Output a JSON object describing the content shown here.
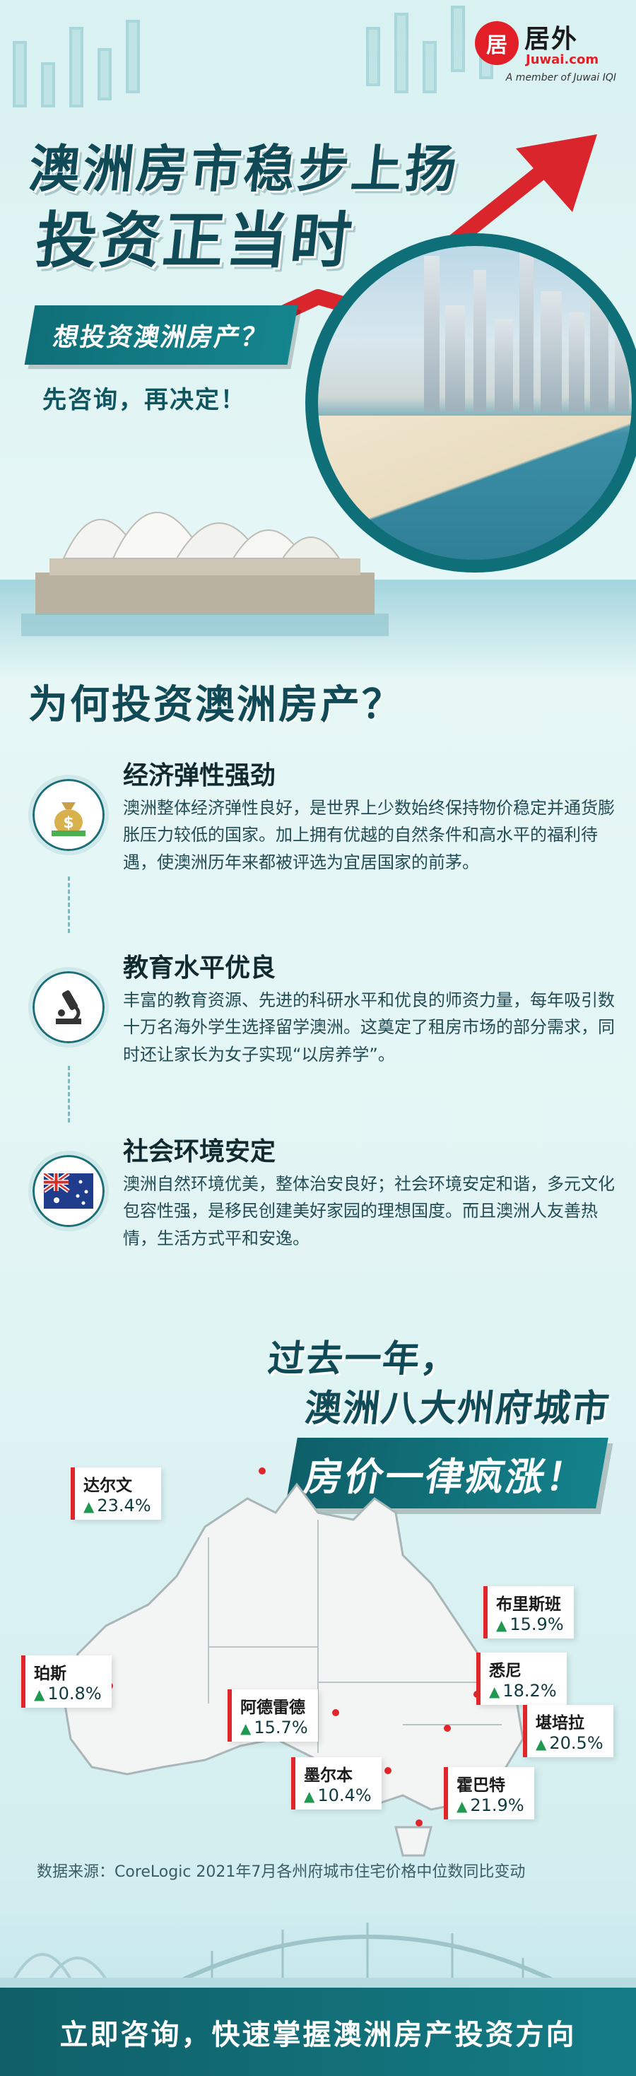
{
  "brand": {
    "logo_glyph": "居",
    "name_cn": "居外",
    "name_en": "Juwai.com",
    "tagline": "A member of Juwai IQI",
    "accent_color": "#e21f26",
    "primary_color": "#0f6f78"
  },
  "hero": {
    "title_line1": "澳洲房市稳步上扬",
    "title_line2": "投资正当时",
    "question": "想投资澳洲房产？",
    "subline": "先咨询，再决定！"
  },
  "why": {
    "title": "为何投资澳洲房产？",
    "items": [
      {
        "icon": "money-bag-icon",
        "title": "经济弹性强劲",
        "body": "澳洲整体经济弹性良好，是世界上少数始终保持物价稳定并通货膨胀压力较低的国家。加上拥有优越的自然条件和高水平的福利待遇，使澳洲历年来都被评选为宜居国家的前茅。"
      },
      {
        "icon": "microscope-icon",
        "title": "教育水平优良",
        "body": "丰富的教育资源、先进的科研水平和优良的师资力量，每年吸引数十万名海外学生选择留学澳洲。这奠定了租房市场的部分需求，同时还让家长为女子实现“以房养学”。"
      },
      {
        "icon": "australia-flag-icon",
        "title": "社会环境安定",
        "body": "澳洲自然环境优美，整体治安良好；社会环境安定和谐，多元文化包容性强，是移民创建美好家园的理想国度。而且澳洲人友善热情，生活方式平和安逸。"
      }
    ]
  },
  "map": {
    "headline1": "过去一年，",
    "headline2": "澳洲八大州府城市",
    "badge": "房价一律疯涨！",
    "up_symbol": "▲",
    "cities": [
      {
        "key": "darwin",
        "name": "达尔文",
        "change": "23.4%"
      },
      {
        "key": "brisbane",
        "name": "布里斯班",
        "change": "15.9%"
      },
      {
        "key": "perth",
        "name": "珀斯",
        "change": "10.8%"
      },
      {
        "key": "sydney",
        "name": "悉尼",
        "change": "18.2%"
      },
      {
        "key": "adelaide",
        "name": "阿德雷德",
        "change": "15.7%"
      },
      {
        "key": "canberra",
        "name": "堪培拉",
        "change": "20.5%"
      },
      {
        "key": "melbourne",
        "name": "墨尔本",
        "change": "10.4%"
      },
      {
        "key": "hobart",
        "name": "霍巴特",
        "change": "21.9%"
      }
    ],
    "source": "数据来源：CoreLogic 2021年7月各州府城市住宅价格中位数同比变动"
  },
  "cta": {
    "label": "立即咨询，快速掌握澳洲房产投资方向"
  }
}
